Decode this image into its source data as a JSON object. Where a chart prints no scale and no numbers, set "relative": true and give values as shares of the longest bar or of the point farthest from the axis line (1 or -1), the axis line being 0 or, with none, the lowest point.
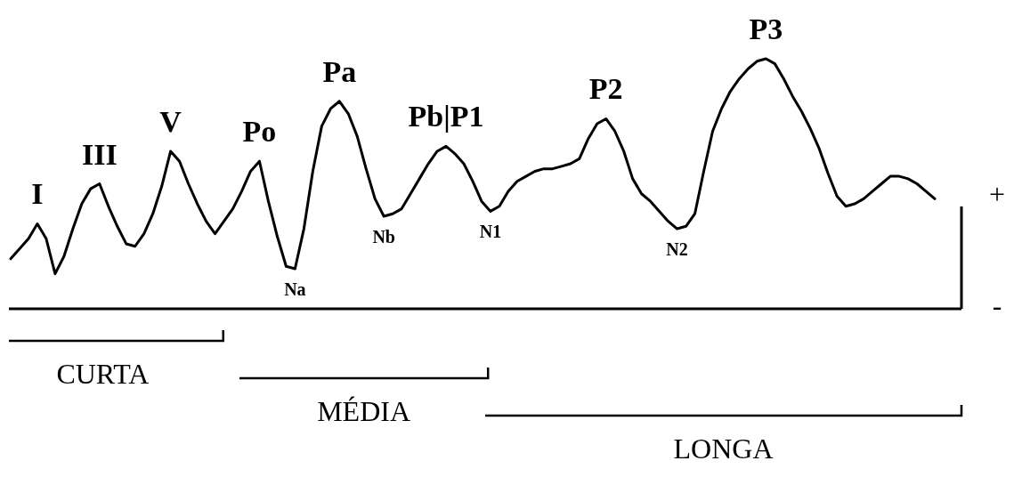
{
  "chart_data": {
    "type": "line",
    "relative": true,
    "marker": "none",
    "line_style": "solid",
    "categories": [
      null,
      null,
      null,
      null,
      null,
      null,
      null,
      null,
      null,
      null,
      null,
      null,
      null,
      null,
      null,
      null,
      null,
      null,
      null,
      null,
      null,
      null,
      null,
      null,
      null,
      null,
      null,
      null,
      null,
      null,
      null,
      null,
      null,
      null,
      null,
      null,
      null,
      null,
      null,
      null,
      null,
      null,
      null,
      null,
      null,
      null,
      null,
      null,
      null,
      null,
      null,
      null,
      null,
      null,
      null,
      null,
      null,
      null,
      null,
      null,
      null,
      null,
      null,
      null,
      null,
      null,
      null,
      null,
      null,
      null,
      null,
      null,
      null,
      null,
      null,
      null,
      null,
      null,
      null,
      null,
      null,
      null,
      null,
      null,
      null,
      null,
      null,
      null,
      null,
      null,
      null,
      null,
      null,
      null,
      null,
      null,
      null,
      null,
      null,
      null,
      null,
      null,
      null,
      null,
      null
    ],
    "series": [
      {
        "color": "#000000",
        "values": [
          0.2,
          0.24,
          0.28,
          0.34,
          0.28,
          0.14,
          0.21,
          0.32,
          0.42,
          0.48,
          0.5,
          0.41,
          0.33,
          0.26,
          0.25,
          0.3,
          0.38,
          0.49,
          0.63,
          0.59,
          0.5,
          0.42,
          0.35,
          0.3,
          0.35,
          0.4,
          0.47,
          0.55,
          0.59,
          0.43,
          0.29,
          0.17,
          0.16,
          0.32,
          0.55,
          0.73,
          0.8,
          0.83,
          0.78,
          0.69,
          0.56,
          0.44,
          0.37,
          0.38,
          0.4,
          0.46,
          0.52,
          0.58,
          0.63,
          0.65,
          0.62,
          0.58,
          0.51,
          0.43,
          0.39,
          0.41,
          0.47,
          0.51,
          0.53,
          0.55,
          0.56,
          0.56,
          0.57,
          0.58,
          0.6,
          0.68,
          0.74,
          0.76,
          0.71,
          0.63,
          0.52,
          0.46,
          0.43,
          0.39,
          0.35,
          0.32,
          0.33,
          0.38,
          0.55,
          0.71,
          0.8,
          0.87,
          0.92,
          0.96,
          0.99,
          1,
          0.98,
          0.92,
          0.85,
          0.79,
          0.72,
          0.64,
          0.54,
          0.45,
          0.41,
          0.42,
          0.44,
          0.47,
          0.5,
          0.53,
          0.53,
          0.52,
          0.5,
          0.47,
          0.44
        ]
      }
    ],
    "annotations": [
      {
        "text": "I",
        "y": 0.34
      },
      {
        "text": "III",
        "y": 0.5
      },
      {
        "text": "V",
        "y": 0.63
      },
      {
        "text": "Po",
        "y": 0.59
      },
      {
        "text": "Pa",
        "y": 0.83
      },
      {
        "text": "Pb|P1",
        "y": 0.65
      },
      {
        "text": "P2",
        "y": 0.76
      },
      {
        "text": "P3",
        "y": 1
      },
      {
        "text": "Na",
        "y": 0.16
      },
      {
        "text": "Nb",
        "y": 0.37
      },
      {
        "text": "N1",
        "y": 0.39
      },
      {
        "text": "N2",
        "y": 0.32
      },
      "+",
      "-",
      "CURTA",
      "MÉDIA",
      "LONGA"
    ]
  }
}
